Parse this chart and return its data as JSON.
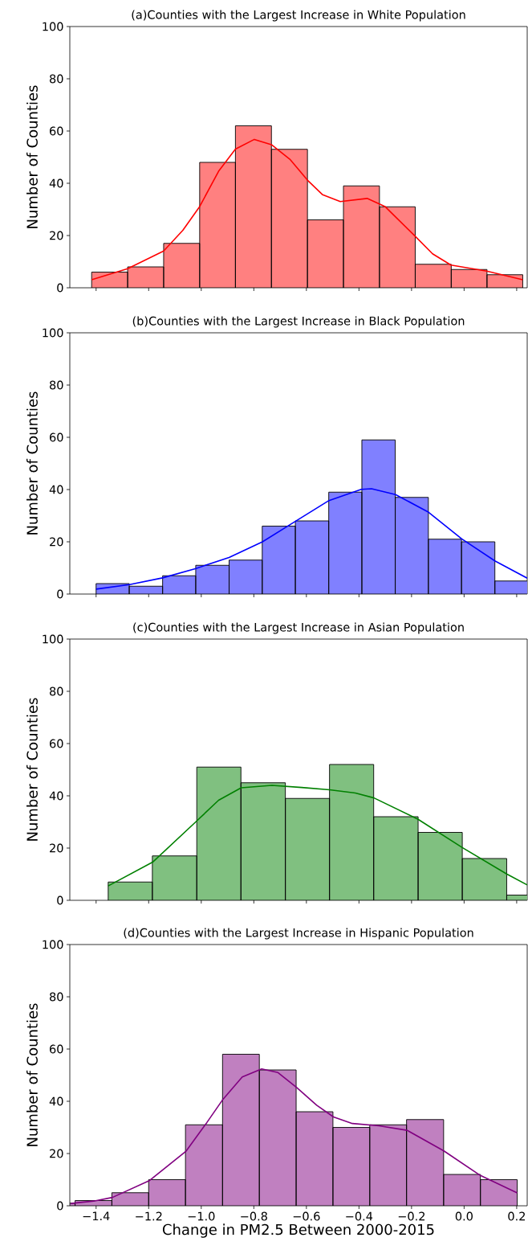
{
  "chart_data": [
    {
      "type": "histogram",
      "title": "(a)Counties with the Largest Increase in White Population",
      "ylabel": "Number of Counties",
      "color": "#ff8080",
      "bins": [
        -1.417,
        -1.28,
        -1.143,
        -1.006,
        -0.87,
        -0.733,
        -0.596,
        -0.459,
        -0.322,
        -0.186,
        -0.049,
        0.087,
        0.223
      ],
      "values": [
        6,
        8,
        17,
        48,
        62,
        53,
        26,
        39,
        31,
        9,
        7,
        5
      ],
      "series": [
        {
          "type": "line",
          "color": "#ff0000",
          "x": [
            -1.417,
            -1.28,
            -1.143,
            -1.07,
            -1.006,
            -0.934,
            -0.87,
            -0.798,
            -0.733,
            -0.663,
            -0.596,
            -0.538,
            -0.471,
            -0.369,
            -0.301,
            -0.187,
            -0.12,
            -0.05,
            0.086,
            0.223
          ],
          "values": [
            3.1,
            7.3,
            14.1,
            22,
            31.1,
            44.6,
            53.1,
            56.8,
            54.8,
            49.2,
            41.2,
            35.6,
            33.0,
            34.2,
            31.1,
            19.8,
            13.0,
            8.7,
            6.4,
            3.1
          ]
        }
      ],
      "xlim": [
        -1.5,
        0.24
      ],
      "ylim": [
        0,
        100
      ],
      "yticks": [
        0,
        20,
        40,
        60,
        80,
        100
      ],
      "xticks": [
        {
          "value": -1.4,
          "label": null
        },
        {
          "value": -1.2,
          "label": null
        },
        {
          "value": -1.0,
          "label": null
        },
        {
          "value": -0.8,
          "label": null
        },
        {
          "value": -0.6,
          "label": null
        },
        {
          "value": -0.4,
          "label": null
        },
        {
          "value": -0.2,
          "label": null
        },
        {
          "value": 0.0,
          "label": null
        },
        {
          "value": 0.2,
          "label": null
        }
      ],
      "tick_labels": "y"
    },
    {
      "type": "histogram",
      "title": "(b)Counties with the Largest Increase in Black Population",
      "ylabel": "Number of Counties",
      "color": "#8080ff",
      "bins": [
        -1.4,
        -1.274,
        -1.147,
        -1.021,
        -0.894,
        -0.768,
        -0.642,
        -0.515,
        -0.389,
        -0.262,
        -0.136,
        -0.01,
        0.117,
        0.243
      ],
      "values": [
        4,
        3,
        7,
        11,
        13,
        26,
        28,
        39,
        59,
        37,
        21,
        20,
        5
      ],
      "series": [
        {
          "type": "line",
          "color": "#0000ff",
          "x": [
            -1.4,
            -1.273,
            -1.147,
            -1.02,
            -0.894,
            -0.767,
            -0.641,
            -0.514,
            -0.391,
            -0.352,
            -0.261,
            -0.135,
            -0.009,
            0.117,
            0.24
          ],
          "values": [
            1.9,
            3.6,
            6.2,
            9.8,
            14.0,
            20.0,
            27.9,
            35.8,
            40.1,
            40.3,
            38.1,
            31.3,
            21.1,
            12.7,
            6.1
          ]
        }
      ],
      "xlim": [
        -1.5,
        0.24
      ],
      "ylim": [
        0,
        100
      ],
      "yticks": [
        0,
        20,
        40,
        60,
        80,
        100
      ],
      "xticks": [
        {
          "value": -1.4,
          "label": null
        },
        {
          "value": -1.2,
          "label": null
        },
        {
          "value": -1.0,
          "label": null
        },
        {
          "value": -0.8,
          "label": null
        },
        {
          "value": -0.6,
          "label": null
        },
        {
          "value": -0.4,
          "label": null
        },
        {
          "value": -0.2,
          "label": null
        },
        {
          "value": 0.0,
          "label": null
        },
        {
          "value": 0.2,
          "label": null
        }
      ],
      "tick_labels": "y"
    },
    {
      "type": "histogram",
      "title": "(c)Counties with the Largest Increase in Asian Population",
      "ylabel": "Number of Counties",
      "color": "#80c080",
      "bins": [
        -1.354,
        -1.186,
        -1.017,
        -0.849,
        -0.68,
        -0.512,
        -0.344,
        -0.175,
        -0.007,
        0.162,
        0.33
      ],
      "values": [
        7,
        17,
        51,
        45,
        39,
        52,
        32,
        26,
        16,
        2
      ],
      "series": [
        {
          "type": "line",
          "color": "#008000",
          "x": [
            -1.354,
            -1.185,
            -1.017,
            -0.934,
            -0.848,
            -0.731,
            -0.618,
            -0.512,
            -0.414,
            -0.343,
            -0.175,
            -0.007,
            0.162,
            0.24
          ],
          "values": [
            5.5,
            14.6,
            30.4,
            38.3,
            43.1,
            44.0,
            43.2,
            42.3,
            41.1,
            39.2,
            31.0,
            20.2,
            10.1,
            5.9
          ]
        }
      ],
      "xlim": [
        -1.5,
        0.24
      ],
      "ylim": [
        0,
        100
      ],
      "yticks": [
        0,
        20,
        40,
        60,
        80,
        100
      ],
      "xticks": [
        {
          "value": -1.4,
          "label": null
        },
        {
          "value": -1.2,
          "label": null
        },
        {
          "value": -1.0,
          "label": null
        },
        {
          "value": -0.8,
          "label": null
        },
        {
          "value": -0.6,
          "label": null
        },
        {
          "value": -0.4,
          "label": null
        },
        {
          "value": -0.2,
          "label": null
        },
        {
          "value": 0.0,
          "label": null
        },
        {
          "value": 0.2,
          "label": null
        }
      ],
      "tick_labels": "y"
    },
    {
      "type": "histogram",
      "title": "(d)Counties with the Largest Increase in Hispanic Population",
      "ylabel": "Number of Counties",
      "xlabel": "Change in PM2.5 Between 2000-2015",
      "color": "#c080c0",
      "bins": [
        -1.5,
        -1.48,
        -1.34,
        -1.2,
        -1.06,
        -0.919,
        -0.779,
        -0.639,
        -0.499,
        -0.359,
        -0.219,
        -0.078,
        0.062,
        0.202
      ],
      "values": [
        1,
        2,
        5,
        10,
        31,
        58,
        52,
        36,
        30,
        31,
        33,
        12,
        10
      ],
      "series": [
        {
          "type": "line",
          "color": "#800080",
          "x": [
            -1.496,
            -1.409,
            -1.338,
            -1.196,
            -1.057,
            -0.979,
            -0.917,
            -0.844,
            -0.77,
            -0.708,
            -0.637,
            -0.561,
            -0.497,
            -0.425,
            -0.324,
            -0.217,
            -0.077,
            0.062,
            0.202
          ],
          "values": [
            0.9,
            1.8,
            3.2,
            9.7,
            21.0,
            31.8,
            40.8,
            49.3,
            52.4,
            51.0,
            45.3,
            38.5,
            34.0,
            31.5,
            30.6,
            28.9,
            21.0,
            11.6,
            4.9
          ]
        }
      ],
      "xlim": [
        -1.5,
        0.24
      ],
      "ylim": [
        0,
        100
      ],
      "yticks": [
        0,
        20,
        40,
        60,
        80,
        100
      ],
      "xticks": [
        {
          "value": -1.4,
          "label": "−1.4"
        },
        {
          "value": -1.2,
          "label": "−1.2"
        },
        {
          "value": -1.0,
          "label": "−1.0"
        },
        {
          "value": -0.8,
          "label": "−0.8"
        },
        {
          "value": -0.6,
          "label": "−0.6"
        },
        {
          "value": -0.4,
          "label": "−0.4"
        },
        {
          "value": -0.2,
          "label": "−0.2"
        },
        {
          "value": 0.0,
          "label": "0.0"
        },
        {
          "value": 0.2,
          "label": "0.2"
        }
      ]
    }
  ]
}
